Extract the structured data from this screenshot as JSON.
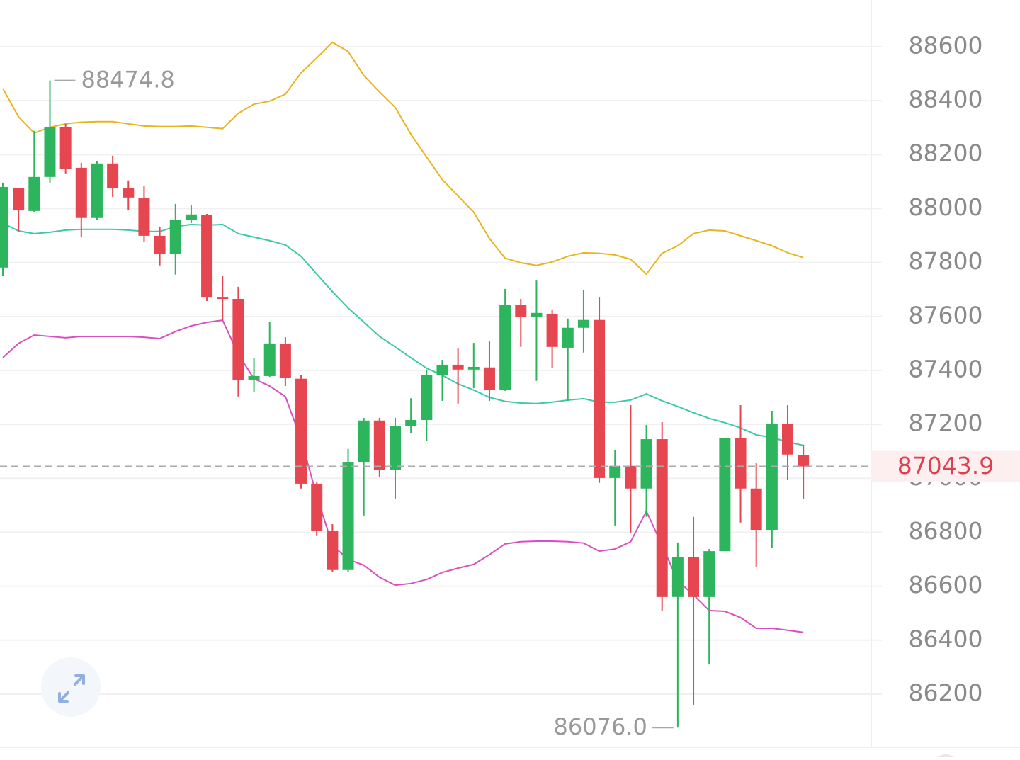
{
  "chart_data": {
    "type": "candlestick",
    "open": [
      87781,
      88077,
      87991,
      88117,
      88301,
      88151,
      87965,
      88167,
      88075,
      88038,
      87899,
      87833,
      87959,
      87975,
      87670,
      87665,
      87363,
      87379,
      87497,
      87369,
      86980,
      86804,
      86660,
      87061,
      87214,
      87030,
      87193,
      87216,
      87382,
      87421,
      87403,
      87411,
      87327,
      87644,
      87597,
      87610,
      87484,
      87558,
      87587,
      87001,
      87046,
      86962,
      87145,
      86560,
      86707,
      86560,
      86730,
      87148,
      86962,
      86809,
      87203,
      87085
    ],
    "high": [
      88096,
      88077,
      88288,
      88474.8,
      88314,
      88169,
      88175,
      88196,
      88104,
      88085,
      87933,
      88017,
      88012,
      87980,
      87749,
      87710,
      87447,
      87579,
      87523,
      87382,
      86988,
      86830,
      87109,
      87224,
      87224,
      87224,
      87297,
      87403,
      87439,
      87481,
      87502,
      87507,
      87702,
      87665,
      87733,
      87623,
      87592,
      87697,
      87670,
      87103,
      87271,
      87198,
      87208,
      86762,
      86857,
      86738,
      87148,
      87271,
      87056,
      87250,
      87271,
      87124
    ],
    "low": [
      87749,
      87912,
      87986,
      88096,
      88130,
      87894,
      87959,
      88043,
      87993,
      87875,
      87789,
      87755,
      87946,
      87657,
      87586,
      87303,
      87321,
      87376,
      87342,
      86962,
      86786,
      86652,
      86652,
      86862,
      87004,
      86922,
      87166,
      87140,
      87287,
      87277,
      87334,
      87287,
      87324,
      87487,
      87361,
      87408,
      87287,
      87466,
      86983,
      86825,
      86799,
      86857,
      86510,
      86076,
      86161,
      86310,
      86730,
      86836,
      86673,
      86743,
      86993,
      86922
    ],
    "close": [
      88080,
      87993,
      88117,
      88301,
      88148,
      87965,
      88167,
      88077,
      88041,
      87899,
      87833,
      87959,
      87978,
      87670,
      87665,
      87363,
      87379,
      87500,
      87371,
      86980,
      86804,
      86660,
      87061,
      87214,
      87030,
      87193,
      87216,
      87382,
      87421,
      87403,
      87413,
      87327,
      87644,
      87597,
      87613,
      87487,
      87558,
      87587,
      87001,
      87046,
      86962,
      87145,
      86560,
      86707,
      86560,
      86730,
      87148,
      86962,
      86809,
      87203,
      87088,
      87043.9
    ],
    "up_color": "#2db55d",
    "down_color": "#e5464f",
    "bands": [
      {
        "color": "#e8b520",
        "values": [
          88445,
          88340,
          88280,
          88301,
          88314,
          88320,
          88322,
          88322,
          88314,
          88306,
          88304,
          88304,
          88306,
          88301,
          88296,
          88353,
          88387,
          88398,
          88424,
          88503,
          88558,
          88616,
          88582,
          88493,
          88432,
          88375,
          88275,
          88191,
          88107,
          88047,
          87986,
          87889,
          87816,
          87799,
          87789,
          87802,
          87823,
          87836,
          87834,
          87828,
          87812,
          87757,
          87834,
          87862,
          87907,
          87920,
          87917,
          87899,
          87881,
          87862,
          87836,
          87818
        ]
      },
      {
        "color": "#3cc9a7",
        "values": [
          87946,
          87917,
          87907,
          87912,
          87920,
          87923,
          87923,
          87923,
          87920,
          87915,
          87915,
          87933,
          87941,
          87938,
          87941,
          87907,
          87894,
          87881,
          87865,
          87823,
          87757,
          87692,
          87631,
          87579,
          87526,
          87487,
          87447,
          87408,
          87382,
          87350,
          87327,
          87300,
          87285,
          87279,
          87277,
          87282,
          87290,
          87295,
          87282,
          87282,
          87290,
          87313,
          87287,
          87266,
          87243,
          87222,
          87206,
          87187,
          87161,
          87151,
          87135,
          87122
        ]
      },
      {
        "color": "#d94fc0",
        "values": [
          87447,
          87500,
          87531,
          87526,
          87521,
          87526,
          87526,
          87526,
          87526,
          87523,
          87518,
          87544,
          87565,
          87578,
          87586,
          87460,
          87369,
          87342,
          87303,
          87145,
          86935,
          86752,
          86699,
          86678,
          86633,
          86604,
          86610,
          86625,
          86651,
          86667,
          86681,
          86717,
          86757,
          86765,
          86767,
          86767,
          86765,
          86760,
          86730,
          86738,
          86765,
          86878,
          86752,
          86620,
          86568,
          86510,
          86507,
          86484,
          86444,
          86444,
          86437,
          86429
        ]
      }
    ],
    "ylim": [
      86003,
      88773
    ],
    "yticks": [
      86200,
      86400,
      86600,
      86800,
      87000,
      87200,
      87400,
      87600,
      87800,
      88000,
      88200,
      88400,
      88600
    ],
    "grid": true,
    "high_label": 88474.8,
    "low_label": {
      "value": 86076,
      "label": "86076.0"
    },
    "last_price": 87043.9
  }
}
